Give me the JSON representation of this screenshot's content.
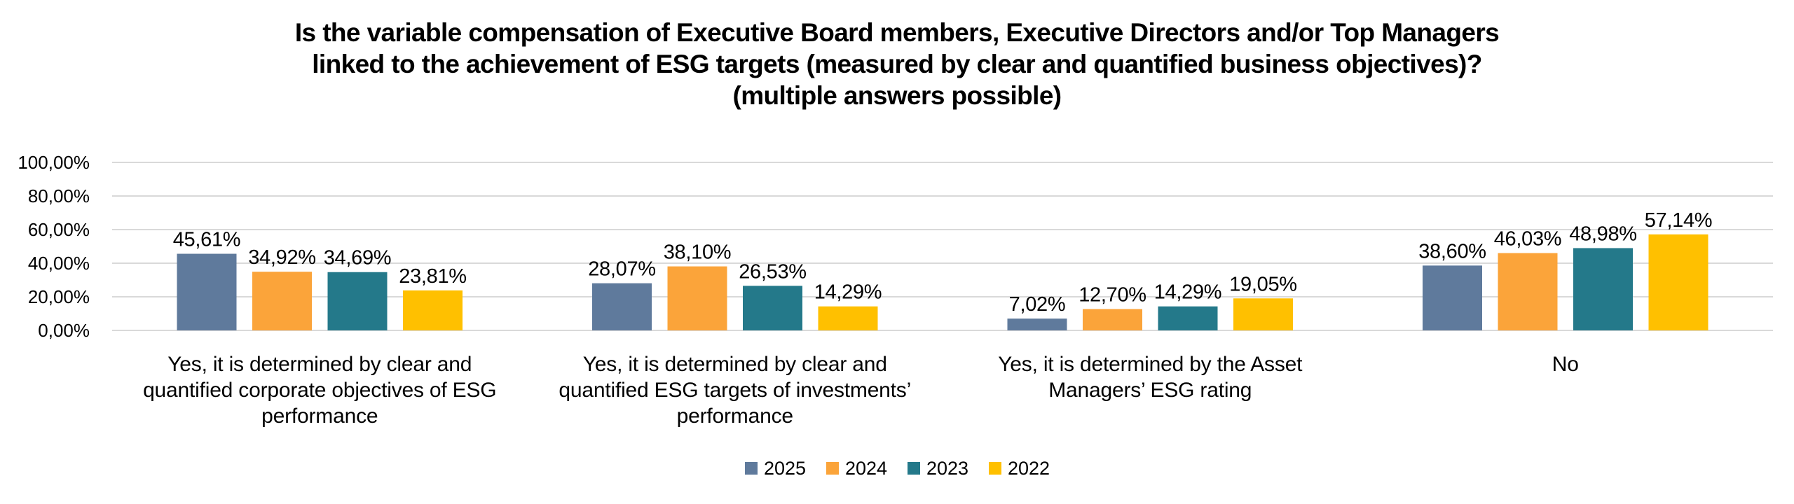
{
  "chart_data": {
    "type": "bar",
    "title_lines": [
      "Is the variable compensation of Executive Board members, Executive Directors and/or Top Managers",
      "linked to the achievement of ESG targets (measured by clear and quantified business objectives)?",
      "(multiple answers possible)"
    ],
    "xlabel": "",
    "ylabel": "",
    "ylim": [
      0,
      100
    ],
    "y_ticks": [
      0,
      20,
      40,
      60,
      80,
      100
    ],
    "y_tick_labels": [
      "0,00%",
      "20,00%",
      "40,00%",
      "60,00%",
      "80,00%",
      "100,00%"
    ],
    "grid": true,
    "legend_position": "bottom",
    "categories": [
      [
        "Yes, it is determined by clear and",
        "quantified corporate objectives of ESG",
        "performance"
      ],
      [
        "Yes, it is determined by clear and",
        "quantified ESG targets of investments’",
        "performance"
      ],
      [
        "Yes, it is determined by the Asset",
        "Managers’ ESG rating"
      ],
      [
        "No"
      ]
    ],
    "series": [
      {
        "name": "2025",
        "color": "#5F7A9C",
        "values": [
          45.61,
          28.07,
          7.02,
          38.6
        ],
        "labels": [
          "45,61%",
          "28,07%",
          "7,02%",
          "38,60%"
        ]
      },
      {
        "name": "2024",
        "color": "#FBA43A",
        "values": [
          34.92,
          38.1,
          12.7,
          46.03
        ],
        "labels": [
          "34,92%",
          "38,10%",
          "12,70%",
          "46,03%"
        ]
      },
      {
        "name": "2023",
        "color": "#24798A",
        "values": [
          34.69,
          26.53,
          14.29,
          48.98
        ],
        "labels": [
          "34,69%",
          "26,53%",
          "14,29%",
          "48,98%"
        ]
      },
      {
        "name": "2022",
        "color": "#FFC000",
        "values": [
          23.81,
          14.29,
          19.05,
          57.14
        ],
        "labels": [
          "23,81%",
          "14,29%",
          "19,05%",
          "57,14%"
        ]
      }
    ],
    "gridline_color": "#D9D9D9"
  }
}
